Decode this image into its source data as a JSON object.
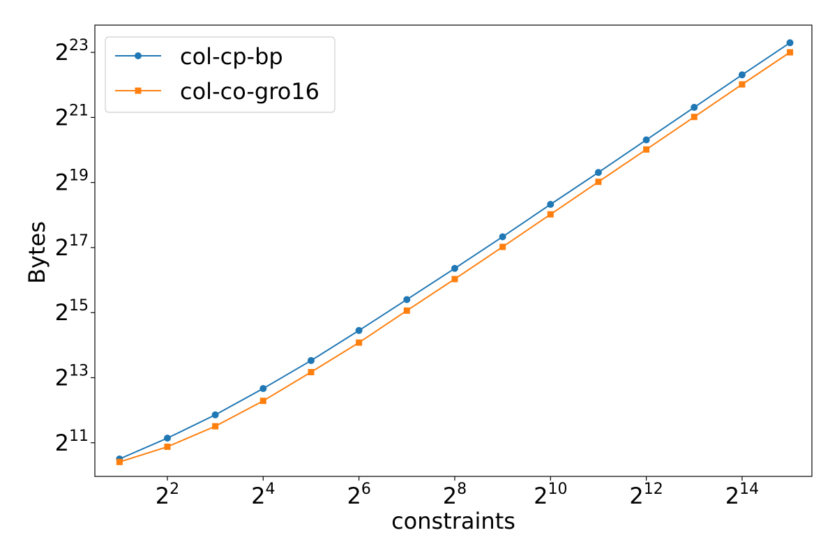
{
  "chart_data": {
    "type": "line",
    "title": "",
    "xlabel": "constraints",
    "ylabel": "Bytes",
    "x_scale": "log2",
    "y_scale": "log2",
    "x_ticks": [
      {
        "base": "2",
        "exp": "2",
        "value": 4
      },
      {
        "base": "2",
        "exp": "4",
        "value": 16
      },
      {
        "base": "2",
        "exp": "6",
        "value": 64
      },
      {
        "base": "2",
        "exp": "8",
        "value": 256
      },
      {
        "base": "2",
        "exp": "10",
        "value": 1024
      },
      {
        "base": "2",
        "exp": "12",
        "value": 4096
      },
      {
        "base": "2",
        "exp": "14",
        "value": 16384
      }
    ],
    "y_ticks": [
      {
        "base": "2",
        "exp": "11",
        "value": 2048
      },
      {
        "base": "2",
        "exp": "13",
        "value": 8192
      },
      {
        "base": "2",
        "exp": "15",
        "value": 32768
      },
      {
        "base": "2",
        "exp": "17",
        "value": 131072
      },
      {
        "base": "2",
        "exp": "19",
        "value": 524288
      },
      {
        "base": "2",
        "exp": "21",
        "value": 2097152
      },
      {
        "base": "2",
        "exp": "23",
        "value": 8388608
      }
    ],
    "xlim": [
      1.4,
      45000
    ],
    "ylim": [
      1000,
      15000000
    ],
    "x": [
      2,
      4,
      8,
      16,
      32,
      64,
      128,
      256,
      512,
      1024,
      2048,
      4096,
      8192,
      16384,
      32768
    ],
    "series": [
      {
        "name": "col-cp-bp",
        "color": "#1f77b4",
        "marker": "circle",
        "values": [
          1450,
          2260,
          3710,
          6500,
          11800,
          22400,
          43300,
          84100,
          165000,
          329000,
          650000,
          1300000,
          2600000,
          5200000,
          10300000
        ]
      },
      {
        "name": "col-co-gro16",
        "color": "#ff7f0e",
        "marker": "square",
        "values": [
          1360,
          1880,
          2910,
          5000,
          9220,
          17300,
          34200,
          67000,
          133000,
          266000,
          532000,
          1060000,
          2120000,
          4240000,
          8400000
        ]
      }
    ],
    "grid": false,
    "legend_position": "upper-left"
  }
}
